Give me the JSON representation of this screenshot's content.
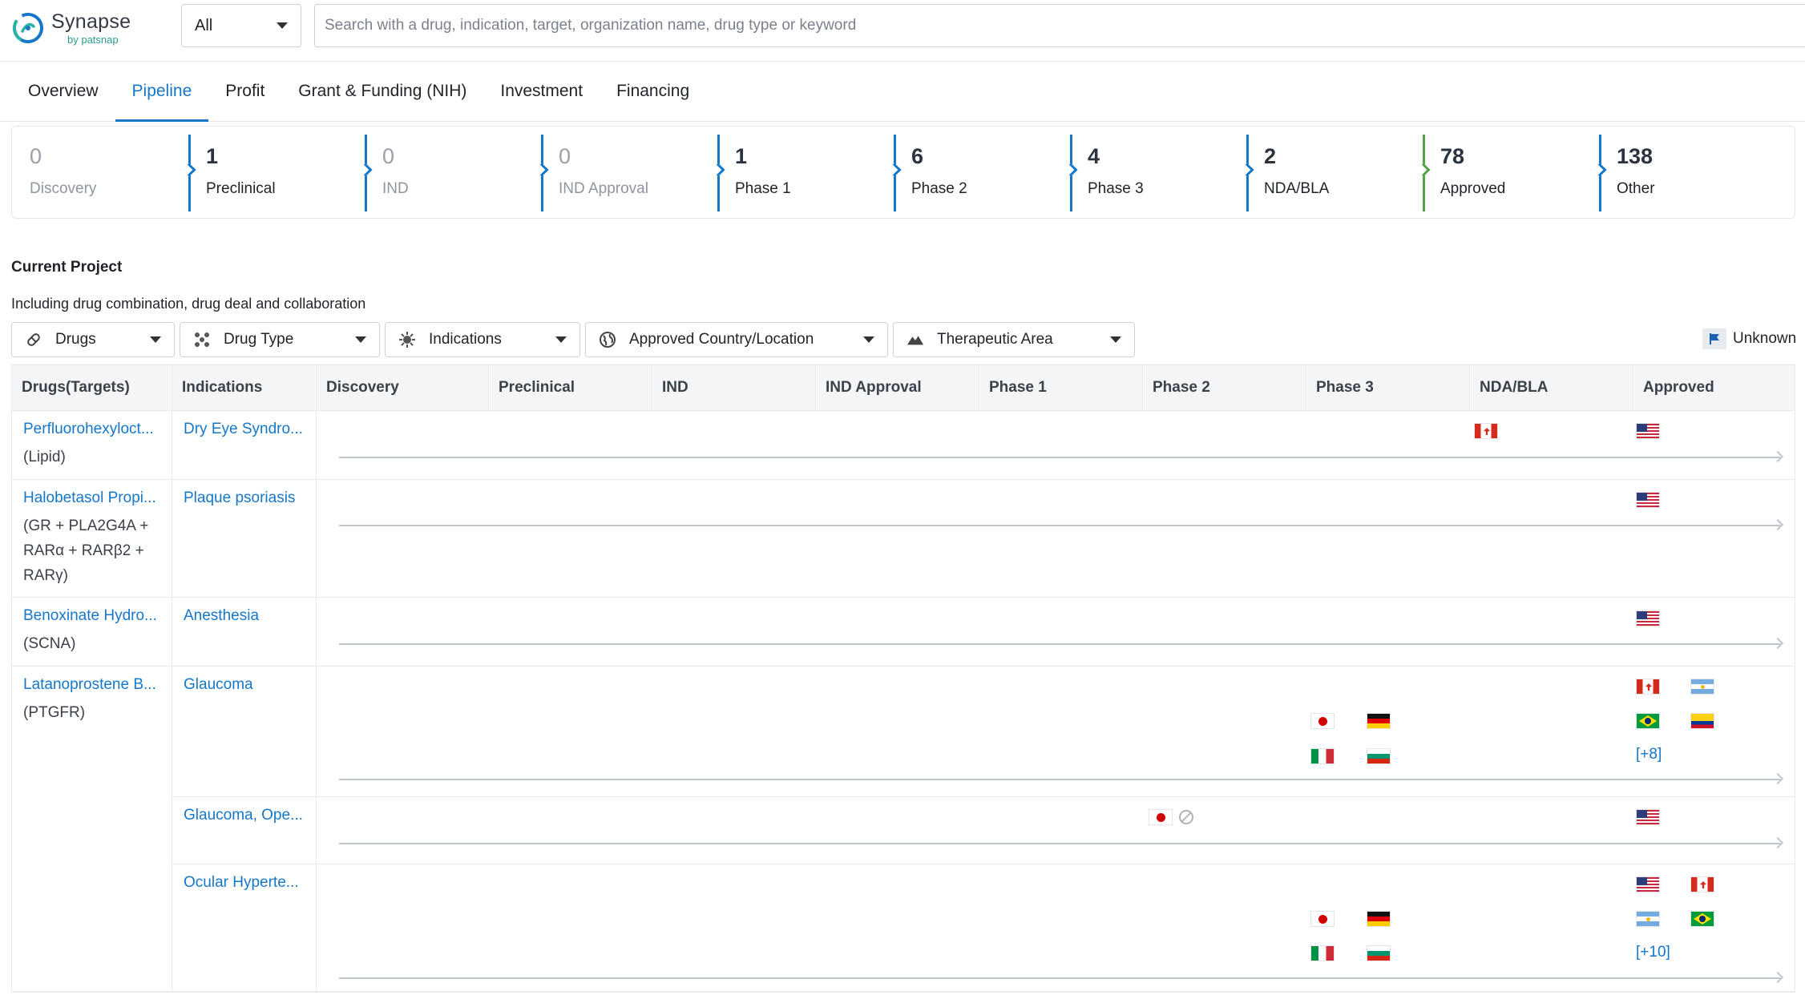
{
  "app": {
    "name": "Synapse",
    "byline": "by patsnap"
  },
  "search": {
    "scope": "All",
    "placeholder": "Search with a drug, indication, target, organization name, drug type or keyword"
  },
  "tabs": [
    {
      "label": "Overview",
      "active": false
    },
    {
      "label": "Pipeline",
      "active": true
    },
    {
      "label": "Profit",
      "active": false
    },
    {
      "label": "Grant & Funding (NIH)",
      "active": false
    },
    {
      "label": "Investment",
      "active": false
    },
    {
      "label": "Financing",
      "active": false
    }
  ],
  "stages": [
    {
      "count": "0",
      "label": "Discovery",
      "zero": true,
      "color": "#1677c9"
    },
    {
      "count": "1",
      "label": "Preclinical",
      "zero": false,
      "color": "#1677c9"
    },
    {
      "count": "0",
      "label": "IND",
      "zero": true,
      "color": "#1677c9"
    },
    {
      "count": "0",
      "label": "IND Approval",
      "zero": true,
      "color": "#1677c9"
    },
    {
      "count": "1",
      "label": "Phase 1",
      "zero": false,
      "color": "#1677c9"
    },
    {
      "count": "6",
      "label": "Phase 2",
      "zero": false,
      "color": "#1677c9"
    },
    {
      "count": "4",
      "label": "Phase 3",
      "zero": false,
      "color": "#1677c9"
    },
    {
      "count": "2",
      "label": "NDA/BLA",
      "zero": false,
      "color": "#1677c9"
    },
    {
      "count": "78",
      "label": "Approved",
      "zero": false,
      "color": "#52a447"
    },
    {
      "count": "138",
      "label": "Other",
      "zero": false,
      "color": "#1677c9"
    }
  ],
  "section": {
    "title": "Current Project",
    "subtitle": "Including drug combination, drug deal and collaboration"
  },
  "filters": {
    "drugs": "Drugs",
    "drug_type": "Drug Type",
    "indications": "Indications",
    "country": "Approved Country/Location",
    "therapeutic_area": "Therapeutic Area",
    "unknown": "Unknown"
  },
  "columns": [
    "Drugs(Targets)",
    "Indications",
    "Discovery",
    "Preclinical",
    "IND",
    "IND Approval",
    "Phase 1",
    "Phase 2",
    "Phase 3",
    "NDA/BLA",
    "Approved"
  ],
  "rows": [
    {
      "drug": "Perfluorohexyloct...",
      "target": "(Lipid)",
      "indication": "Dry Eye Syndro..."
    },
    {
      "drug": "Halobetasol Propi...",
      "target": "(GR + PLA2G4A + RARα + RARβ2 + RARγ)",
      "indication": "Plaque psoriasis"
    },
    {
      "drug": "Benoxinate Hydro...",
      "target": "(SCNA)",
      "indication": "Anesthesia"
    },
    {
      "drug": "Latanoprostene B...",
      "target": "(PTGFR)",
      "indication": "Glaucoma",
      "more": "[+8]"
    },
    {
      "indication": "Glaucoma, Ope..."
    },
    {
      "indication": "Ocular Hyperte...",
      "more": "[+10]"
    }
  ]
}
